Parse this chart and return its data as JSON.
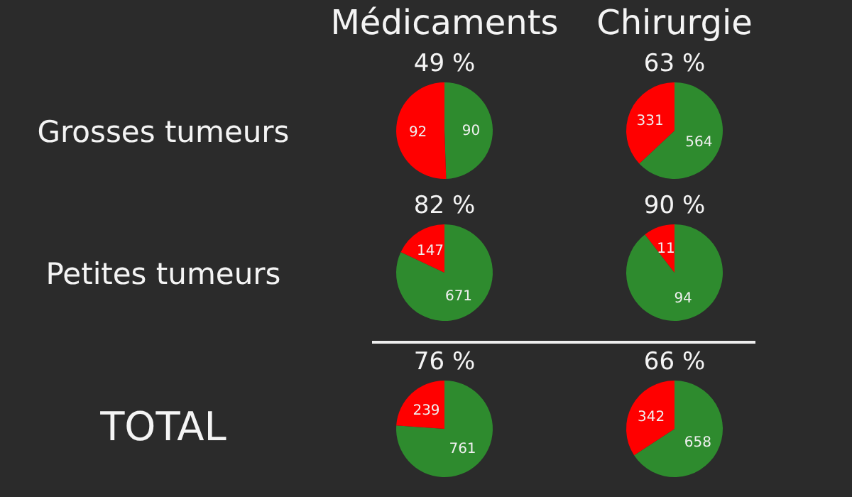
{
  "chart_data": [
    {
      "type": "other",
      "annotations": [
        "Médicaments",
        "Chirurgie",
        "Grosses tumeurs",
        "Petites tumeurs",
        "TOTAL"
      ]
    },
    {
      "type": "pie",
      "title": "49 %",
      "categories": [
        null,
        null
      ],
      "values": [
        90,
        92
      ],
      "colors": [
        "#2e8b2e",
        "#ff0000"
      ],
      "data_labels": true
    },
    {
      "type": "pie",
      "title": "63 %",
      "categories": [
        null,
        null
      ],
      "values": [
        564,
        331
      ],
      "colors": [
        "#2e8b2e",
        "#ff0000"
      ],
      "data_labels": true
    },
    {
      "type": "pie",
      "title": "82 %",
      "categories": [
        null,
        null
      ],
      "values": [
        671,
        147
      ],
      "colors": [
        "#2e8b2e",
        "#ff0000"
      ],
      "data_labels": true
    },
    {
      "type": "pie",
      "title": "90 %",
      "categories": [
        null,
        null
      ],
      "values": [
        94,
        11
      ],
      "colors": [
        "#2e8b2e",
        "#ff0000"
      ],
      "data_labels": true
    },
    {
      "type": "pie",
      "title": "76 %",
      "categories": [
        null,
        null
      ],
      "values": [
        761,
        239
      ],
      "colors": [
        "#2e8b2e",
        "#ff0000"
      ],
      "data_labels": true
    },
    {
      "type": "pie",
      "title": "66 %",
      "categories": [
        null,
        null
      ],
      "values": [
        658,
        342
      ],
      "colors": [
        "#2e8b2e",
        "#ff0000"
      ],
      "data_labels": true
    }
  ]
}
